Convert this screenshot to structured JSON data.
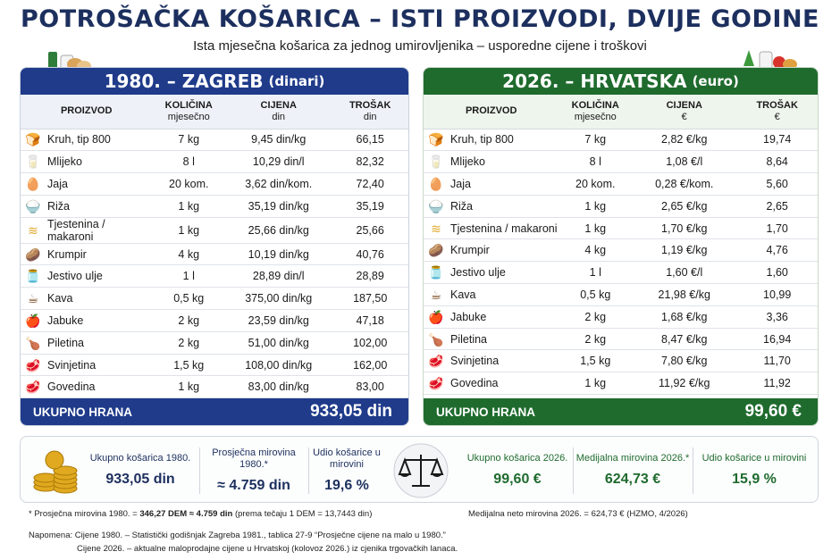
{
  "title": "POTROŠAČKA KOŠARICA – ISTI PROIZVODI, DVIJE GODINE",
  "subtitle": "Ista mjesečna košarica za jednog umirovljenika – usporedne cijene i troškovi",
  "colors": {
    "navy": "#1f3b8a",
    "green": "#1f6b2e"
  },
  "panel1980": {
    "title": "1980. – ZAGREB",
    "title_unit": "(dinari)",
    "headers": {
      "product": "PROIZVOD",
      "qty": "KOLIČINA",
      "qty_sub": "mjesečno",
      "price": "CIJENA",
      "price_sub": "din",
      "cost": "TROŠAK",
      "cost_sub": "din"
    },
    "rows": [
      {
        "icon": "bread-icon",
        "name": "Kruh, tip 800",
        "qty": "7 kg",
        "price": "9,45 din/kg",
        "cost": "66,15"
      },
      {
        "icon": "milk-icon",
        "name": "Mlijeko",
        "qty": "8 l",
        "price": "10,29 din/l",
        "cost": "82,32"
      },
      {
        "icon": "eggs-icon",
        "name": "Jaja",
        "qty": "20 kom.",
        "price": "3,62 din/kom.",
        "cost": "72,40"
      },
      {
        "icon": "rice-icon",
        "name": "Riža",
        "qty": "1 kg",
        "price": "35,19 din/kg",
        "cost": "35,19"
      },
      {
        "icon": "pasta-icon",
        "name": "Tjestenina / makaroni",
        "qty": "1 kg",
        "price": "25,66 din/kg",
        "cost": "25,66"
      },
      {
        "icon": "potato-icon",
        "name": "Krumpir",
        "qty": "4 kg",
        "price": "10,19 din/kg",
        "cost": "40,76"
      },
      {
        "icon": "oil-icon",
        "name": "Jestivo ulje",
        "qty": "1 l",
        "price": "28,89 din/l",
        "cost": "28,89"
      },
      {
        "icon": "coffee-icon",
        "name": "Kava",
        "qty": "0,5 kg",
        "price": "375,00 din/kg",
        "cost": "187,50"
      },
      {
        "icon": "apple-icon",
        "name": "Jabuke",
        "qty": "2 kg",
        "price": "23,59 din/kg",
        "cost": "47,18"
      },
      {
        "icon": "chicken-icon",
        "name": "Piletina",
        "qty": "2 kg",
        "price": "51,00 din/kg",
        "cost": "102,00"
      },
      {
        "icon": "pork-icon",
        "name": "Svinjetina",
        "qty": "1,5 kg",
        "price": "108,00 din/kg",
        "cost": "162,00"
      },
      {
        "icon": "beef-icon",
        "name": "Govedina",
        "qty": "1 kg",
        "price": "83,00 din/kg",
        "cost": "83,00"
      }
    ],
    "total_label": "UKUPNO HRANA",
    "total_value": "933,05 din"
  },
  "panel2026": {
    "title": "2026. – HRVATSKA",
    "title_unit": "(euro)",
    "headers": {
      "product": "PROIZVOD",
      "qty": "KOLIČINA",
      "qty_sub": "mjesečno",
      "price": "CIJENA",
      "price_sub": "€",
      "cost": "TROŠAK",
      "cost_sub": "€"
    },
    "rows": [
      {
        "icon": "bread-icon",
        "name": "Kruh, tip 800",
        "qty": "7 kg",
        "price": "2,82 €/kg",
        "cost": "19,74"
      },
      {
        "icon": "milk-icon",
        "name": "Mlijeko",
        "qty": "8 l",
        "price": "1,08 €/l",
        "cost": "8,64"
      },
      {
        "icon": "eggs-icon",
        "name": "Jaja",
        "qty": "20 kom.",
        "price": "0,28 €/kom.",
        "cost": "5,60"
      },
      {
        "icon": "rice-icon",
        "name": "Riža",
        "qty": "1 kg",
        "price": "2,65 €/kg",
        "cost": "2,65"
      },
      {
        "icon": "pasta-icon",
        "name": "Tjestenina / makaroni",
        "qty": "1 kg",
        "price": "1,70 €/kg",
        "cost": "1,70"
      },
      {
        "icon": "potato-icon",
        "name": "Krumpir",
        "qty": "4 kg",
        "price": "1,19 €/kg",
        "cost": "4,76"
      },
      {
        "icon": "oil-icon",
        "name": "Jestivo ulje",
        "qty": "1 l",
        "price": "1,60 €/l",
        "cost": "1,60"
      },
      {
        "icon": "coffee-icon",
        "name": "Kava",
        "qty": "0,5 kg",
        "price": "21,98 €/kg",
        "cost": "10,99"
      },
      {
        "icon": "apple-icon",
        "name": "Jabuke",
        "qty": "2 kg",
        "price": "1,68 €/kg",
        "cost": "3,36"
      },
      {
        "icon": "chicken-icon",
        "name": "Piletina",
        "qty": "2 kg",
        "price": "8,47 €/kg",
        "cost": "16,94"
      },
      {
        "icon": "pork-icon",
        "name": "Svinjetina",
        "qty": "1,5 kg",
        "price": "7,80 €/kg",
        "cost": "11,70"
      },
      {
        "icon": "beef-icon",
        "name": "Govedina",
        "qty": "1 kg",
        "price": "11,92 €/kg",
        "cost": "11,92"
      }
    ],
    "total_label": "UKUPNO HRANA",
    "total_value": "99,60 €"
  },
  "summary": {
    "basket_1980_label": "Ukupno košarica 1980.",
    "basket_1980_value": "933,05 din",
    "pension_1980_label": "Prosječna mirovina 1980.*",
    "pension_1980_value": "≈ 4.759 din",
    "share_1980_label": "Udio košarice u mirovini",
    "share_1980_value": "19,6 %",
    "basket_2026_label": "Ukupno košarica 2026.",
    "basket_2026_value": "99,60 €",
    "pension_2026_label": "Medijalna mirovina 2026.*",
    "pension_2026_value": "624,73 €",
    "share_2026_label": "Udio košarice u mirovini",
    "share_2026_value": "15,9 %"
  },
  "footnotes": {
    "fn1_pre": "* Prosječna mirovina 1980. = ",
    "fn1_bold": "346,27 DEM ≈ 4.759 din",
    "fn1_post": " (prema tečaju 1 DEM = 13,7443 din)",
    "fn2": "Medijalna neto mirovina 2026. = 624,73 € (HZMO, 4/2026)",
    "note1": "Napomena: Cijene 1980. – Statistički godišnjak Zagreba 1981., tablica 27-9 “Prosječne cijene na malo u 1980.”",
    "note2": "Cijene 2026. – aktualne maloprodajne cijene u Hrvatskoj (kolovoz 2026.) iz cjenika trgovačkih lanaca."
  }
}
